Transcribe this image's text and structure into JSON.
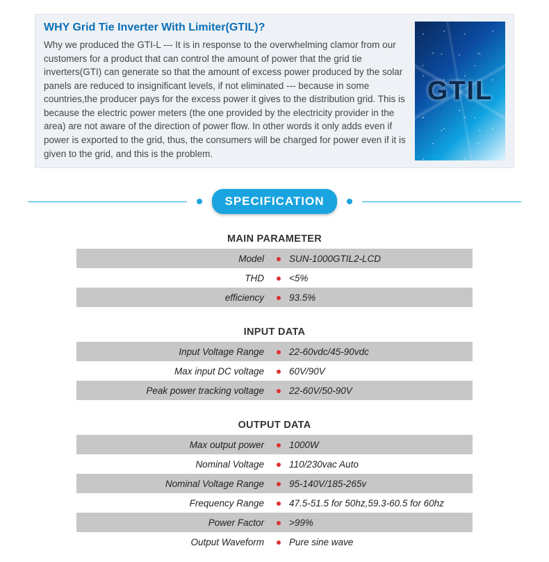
{
  "intro": {
    "title": "WHY Grid Tie Inverter With Limiter(GTIL)?",
    "body": "Why we produced the GTI-L --- It is in response to the overwhelming clamor from our customers for a product that can control the amount of power that the grid tie inverters(GTI) can generate so that the amount of excess power produced by the solar panels are reduced to insignificant levels, if not eliminated --- because in some countries,the producer pays for the excess power it gives to the distribution grid. This is because the electric power meters (the one provided by the electricity provider in the area) are not aware of the direction of power flow. In other words it only adds even if power is exported to the grid, thus, the consumers will be charged for power even if it is given to the grid, and this is the problem.",
    "image_label": "GTIL"
  },
  "spec_pill": "SPECIFICATION",
  "colors": {
    "title_color": "#0a6fb7",
    "intro_bg": "#eef2f6",
    "intro_border": "#dde3e9",
    "accent": "#1aa4df",
    "row_shade": "#c7c7c7",
    "bullet": "#e03030"
  },
  "sections": [
    {
      "title": "MAIN PARAMETER",
      "rows": [
        {
          "label": "Model",
          "value": "SUN-1000GTIL2-LCD"
        },
        {
          "label": "THD",
          "value": "<5%"
        },
        {
          "label": "efficiency",
          "value": "93.5%"
        }
      ]
    },
    {
      "title": "INPUT DATA",
      "rows": [
        {
          "label": "Input Voltage Range",
          "value": "22-60vdc/45-90vdc"
        },
        {
          "label": "Max input DC voltage",
          "value": "60V/90V"
        },
        {
          "label": "Peak power tracking voltage",
          "value": "22-60V/50-90V"
        }
      ]
    },
    {
      "title": "OUTPUT DATA",
      "rows": [
        {
          "label": "Max output power",
          "value": "1000W"
        },
        {
          "label": "Nominal Voltage",
          "value": "110/230vac  Auto"
        },
        {
          "label": "Nominal Voltage Range",
          "value": "95-140V/185-265v"
        },
        {
          "label": "Frequency Range",
          "value": "47.5-51.5 for 50hz,59.3-60.5 for 60hz"
        },
        {
          "label": "Power Factor",
          "value": ">99%"
        },
        {
          "label": "Output Waveform",
          "value": "Pure sine wave"
        }
      ]
    }
  ]
}
